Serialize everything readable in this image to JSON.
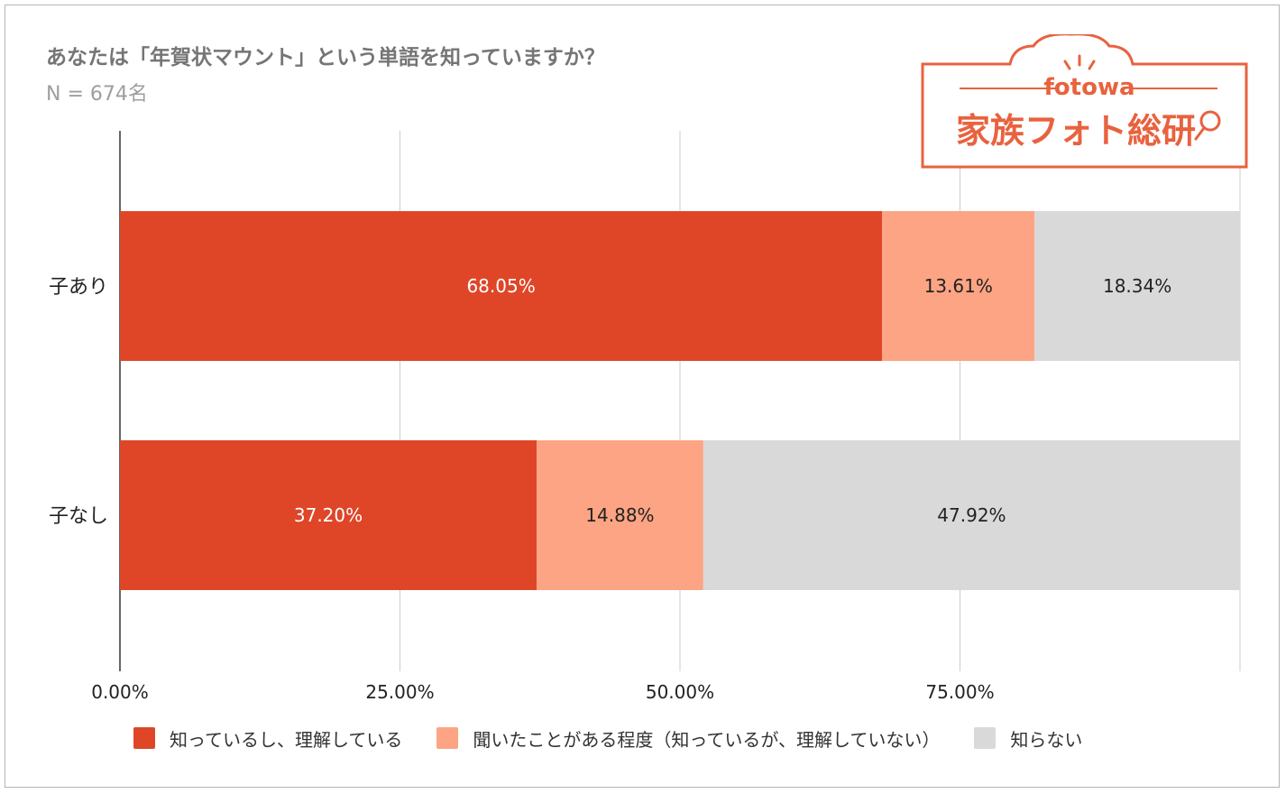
{
  "chart_data": {
    "type": "bar",
    "orientation": "horizontal",
    "stacked": true,
    "title": "あなたは「年賀状マウント」という単語を知っていますか？",
    "subtitle": "N = 674名",
    "categories": [
      "子あり",
      "子なし"
    ],
    "series": [
      {
        "name": "知っているし、理解している",
        "values": [
          68.05,
          37.2
        ],
        "labels": [
          "68.05%",
          "37.20%"
        ],
        "color": "#df4628",
        "label_color": "#ffffff"
      },
      {
        "name": "聞いたことがある程度（知っているが、理解していない）",
        "values": [
          13.61,
          14.88
        ],
        "labels": [
          "13.61%",
          "14.88%"
        ],
        "color": "#fca483",
        "label_color": "#222222"
      },
      {
        "name": "知らない",
        "values": [
          18.34,
          47.92
        ],
        "labels": [
          "18.34%",
          "47.92%"
        ],
        "color": "#d9d9d9",
        "label_color": "#222222"
      }
    ],
    "xlim": [
      0,
      100
    ],
    "xticks": [
      0,
      25,
      50,
      75
    ],
    "xtick_labels": [
      "0.00%",
      "25.00%",
      "50.00%",
      "75.00%"
    ],
    "grid": true,
    "legend_position": "bottom"
  },
  "logo": {
    "brand": "fotowa",
    "text": "家族フォト総研",
    "color": "#e8623e"
  }
}
